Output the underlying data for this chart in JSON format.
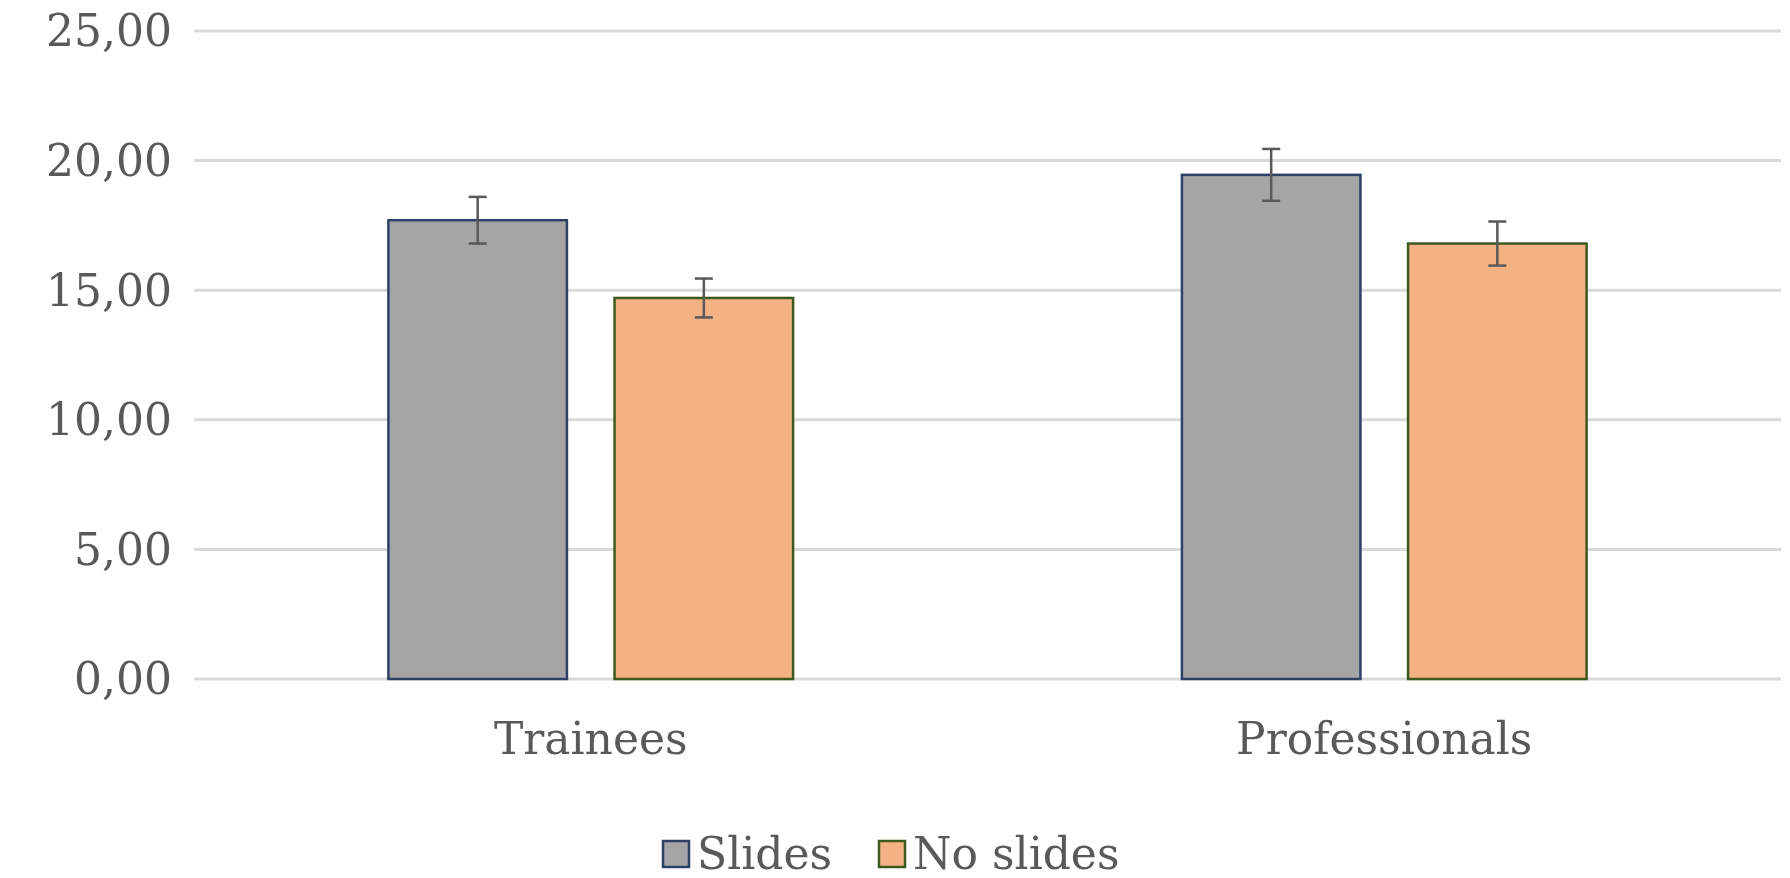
{
  "chart_data": {
    "type": "bar",
    "categories": [
      "Trainees",
      "Professionals"
    ],
    "series": [
      {
        "name": "Slides",
        "color": "#a5a5a5",
        "values": [
          17.7,
          19.45
        ],
        "errors": [
          0.9,
          1.0
        ]
      },
      {
        "name": "No slides",
        "color": "#f4b183",
        "values": [
          14.7,
          16.8
        ],
        "errors": [
          0.75,
          0.85
        ]
      }
    ],
    "ylim": [
      0,
      25
    ],
    "yticks": [
      {
        "value": 0,
        "label": "0,00"
      },
      {
        "value": 5,
        "label": "5,00"
      },
      {
        "value": 10,
        "label": "10,00"
      },
      {
        "value": 15,
        "label": "15,00"
      },
      {
        "value": 20,
        "label": "20,00"
      },
      {
        "value": 25,
        "label": "25,00"
      }
    ],
    "grid": "y",
    "legend": "bottom"
  }
}
